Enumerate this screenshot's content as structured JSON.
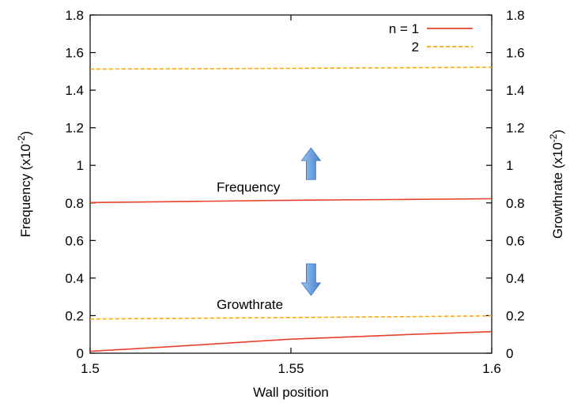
{
  "chart_data": {
    "type": "line",
    "xlabel": "Wall position",
    "ylabel": "Frequency (x10",
    "ylabel_exp": "-2",
    "ylabel_close": ")",
    "y2label": "Growthrate (x10",
    "y2label_exp": "-2",
    "y2label_close": ")",
    "xlim": [
      1.5,
      1.6
    ],
    "ylim": [
      0,
      1.8
    ],
    "y2lim": [
      0,
      1.8
    ],
    "xticks": [
      "1.5",
      "1.55",
      "1.6"
    ],
    "yticks": [
      "0",
      "0.2",
      "0.4",
      "0.6",
      "0.8",
      "1",
      "1.2",
      "1.4",
      "1.6",
      "1.8"
    ],
    "y2ticks": [
      "0",
      "0.2",
      "0.4",
      "0.6",
      "0.8",
      "1",
      "1.2",
      "1.4",
      "1.6",
      "1.8"
    ],
    "legend_position": "top-right",
    "series": [
      {
        "name": "n = 1",
        "role": "frequency",
        "color": "#e8432a",
        "style": "solid",
        "x": [
          1.5,
          1.525,
          1.55,
          1.575,
          1.6
        ],
        "y": [
          0.802,
          0.808,
          0.814,
          0.818,
          0.822
        ]
      },
      {
        "name": "2",
        "role": "frequency",
        "color": "#f0a81c",
        "style": "dashed",
        "x": [
          1.5,
          1.525,
          1.55,
          1.575,
          1.6
        ],
        "y": [
          1.512,
          1.514,
          1.516,
          1.519,
          1.522
        ]
      },
      {
        "name": "n = 1",
        "role": "growthrate",
        "color": "#e8432a",
        "style": "solid",
        "in_legend": false,
        "x": [
          1.5,
          1.52,
          1.54,
          1.55,
          1.56,
          1.58,
          1.6
        ],
        "y": [
          0.01,
          0.035,
          0.062,
          0.075,
          0.083,
          0.1,
          0.115
        ]
      },
      {
        "name": "2",
        "role": "growthrate",
        "color": "#f0a81c",
        "style": "dashed",
        "in_legend": false,
        "x": [
          1.5,
          1.525,
          1.55,
          1.575,
          1.6
        ],
        "y": [
          0.182,
          0.186,
          0.19,
          0.194,
          0.199
        ]
      }
    ],
    "annotations": [
      {
        "text": "Frequency",
        "x": 1.5315,
        "y": 0.86,
        "arrow": "up",
        "arrow_x": 1.555,
        "arrow_y": 1.0
      },
      {
        "text": "Growthrate",
        "x": 1.5315,
        "y": 0.235,
        "arrow": "down",
        "arrow_x": 1.555,
        "arrow_y": 0.4
      }
    ]
  }
}
